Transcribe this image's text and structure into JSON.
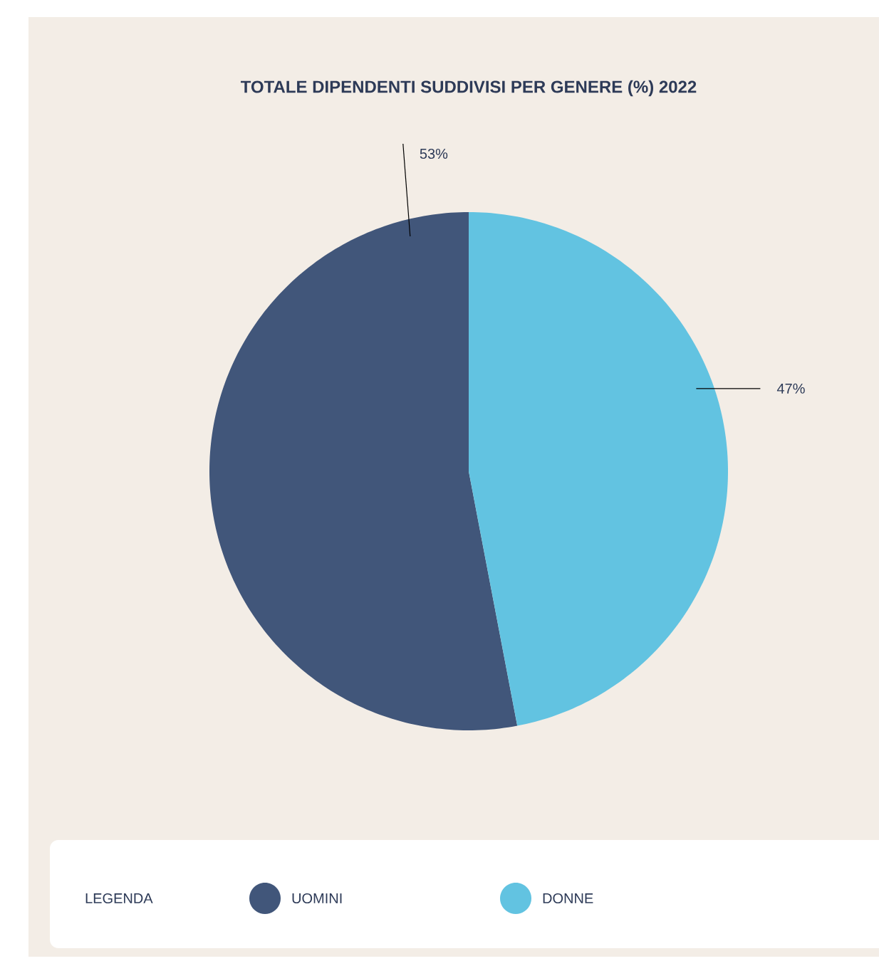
{
  "chart_data": {
    "type": "pie",
    "title": "TOTALE DIPENDENTI SUDDIVISI PER GENERE (%) 2022",
    "categories": [
      "UOMINI",
      "DONNE"
    ],
    "values": [
      53,
      47
    ],
    "colors": [
      "#41567a",
      "#62c3e1"
    ],
    "value_labels": [
      "53%",
      "47%"
    ],
    "legend": "bottom",
    "legend_title": "LEGENDA"
  }
}
